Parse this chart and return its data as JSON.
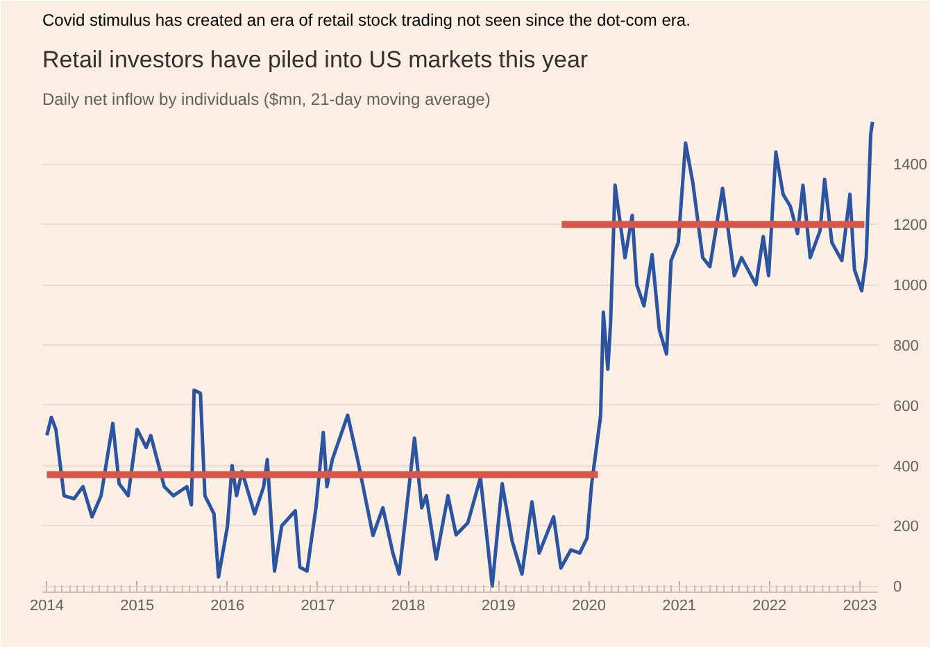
{
  "chart_data": {
    "type": "line",
    "title": "Retail investors have piled into US markets this year",
    "subtitle": "Daily net inflow by individuals ($mn, 21-day moving average)",
    "annotations": [
      "Covid stimulus has created an era of retail stock trading not seen since the dot-com era."
    ],
    "xlim": [
      2013.95,
      2023.2
    ],
    "xticks": [
      2014,
      2015,
      2016,
      2017,
      2018,
      2019,
      2020,
      2021,
      2022,
      2023
    ],
    "ylim": [
      -20,
      1560
    ],
    "yticks": [
      0,
      200,
      400,
      600,
      800,
      1000,
      1200,
      1400
    ],
    "grid": "y",
    "line_style": "solid",
    "series": [
      {
        "color": "#2b55a0",
        "x": [
          2014.0,
          2014.05,
          2014.1,
          2014.19,
          2014.3,
          2014.4,
          2014.5,
          2014.6,
          2014.73,
          2014.8,
          2014.9,
          2015.0,
          2015.1,
          2015.15,
          2015.3,
          2015.4,
          2015.55,
          2015.6,
          2015.63,
          2015.7,
          2015.75,
          2015.85,
          2015.9,
          2016.0,
          2016.05,
          2016.1,
          2016.16,
          2016.3,
          2016.4,
          2016.44,
          2016.52,
          2016.6,
          2016.75,
          2016.8,
          2016.88,
          2016.98,
          2017.06,
          2017.1,
          2017.16,
          2017.33,
          2017.44,
          2017.61,
          2017.72,
          2017.83,
          2017.9,
          2018.07,
          2018.15,
          2018.2,
          2018.31,
          2018.44,
          2018.53,
          2018.66,
          2018.8,
          2018.93,
          2019.04,
          2019.15,
          2019.26,
          2019.37,
          2019.45,
          2019.61,
          2019.69,
          2019.8,
          2019.9,
          2019.98,
          2020.03,
          2020.13,
          2020.16,
          2020.21,
          2020.24,
          2020.29,
          2020.34,
          2020.4,
          2020.48,
          2020.53,
          2020.61,
          2020.7,
          2020.78,
          2020.86,
          2020.91,
          2020.99,
          2021.07,
          2021.15,
          2021.26,
          2021.34,
          2021.48,
          2021.61,
          2021.69,
          2021.85,
          2021.93,
          2021.99,
          2022.07,
          2022.15,
          2022.23,
          2022.31,
          2022.37,
          2022.45,
          2022.56,
          2022.61,
          2022.69,
          2022.8,
          2022.89,
          2022.94,
          2023.02,
          2023.07,
          2023.12,
          2023.14
        ],
        "values": [
          500,
          560,
          520,
          300,
          290,
          330,
          230,
          300,
          540,
          340,
          300,
          520,
          460,
          500,
          330,
          300,
          330,
          270,
          650,
          640,
          300,
          240,
          30,
          200,
          400,
          300,
          380,
          240,
          330,
          420,
          50,
          200,
          250,
          63,
          50,
          263,
          510,
          330,
          420,
          567,
          420,
          168,
          260,
          110,
          40,
          491,
          260,
          300,
          90,
          300,
          170,
          210,
          360,
          0,
          340,
          150,
          40,
          280,
          110,
          230,
          60,
          120,
          110,
          160,
          337,
          566,
          909,
          720,
          870,
          1330,
          1220,
          1090,
          1230,
          1000,
          930,
          1100,
          850,
          770,
          1080,
          1140,
          1470,
          1340,
          1090,
          1060,
          1320,
          1030,
          1090,
          1000,
          1160,
          1030,
          1440,
          1300,
          1260,
          1170,
          1330,
          1090,
          1180,
          1350,
          1140,
          1080,
          1300,
          1050,
          980,
          1090,
          1500,
          1540
        ]
      },
      {
        "color": "#d9574a",
        "x": [
          2014.0,
          2020.1
        ],
        "values": [
          370,
          370
        ]
      },
      {
        "color": "#d9574a",
        "x": [
          2019.7,
          2023.05
        ],
        "values": [
          1200,
          1200
        ]
      }
    ]
  }
}
